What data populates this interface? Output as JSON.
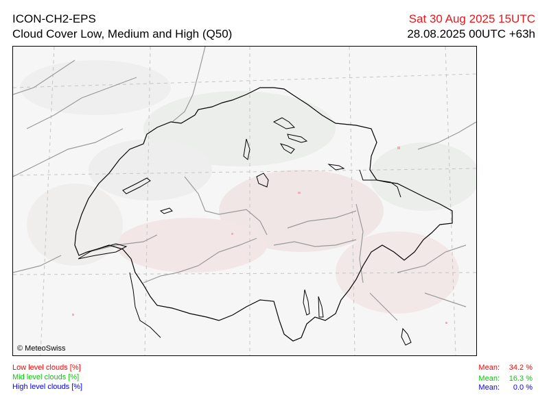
{
  "header": {
    "model": "ICON-CH2-EPS",
    "product": "Cloud Cover Low, Medium and High (Q50)",
    "valid_time": "Sat 30 Aug 2025 15UTC",
    "run_time": "28.08.2025 00UTC +63h"
  },
  "map": {
    "copyright": "© MeteoSwiss"
  },
  "legend": [
    {
      "label": "Low level clouds [%]",
      "color": "#ff0000",
      "mean_label": "Mean:",
      "mean_value": "34.2 %"
    },
    {
      "label": "Mid level clouds [%]",
      "color": "#00cc00",
      "mean_label": "Mean:",
      "mean_value": "16.3 %"
    },
    {
      "label": "High level clouds [%]",
      "color": "#0000ff",
      "mean_label": "Mean:",
      "mean_value": "0.0 %"
    }
  ],
  "colors": {
    "low_cloud_shade": "#f2e4e4",
    "mid_cloud_shade": "#e6ebe6",
    "border": "#000000",
    "river": "#9a9a9a",
    "grid": "#bdbdbd"
  }
}
